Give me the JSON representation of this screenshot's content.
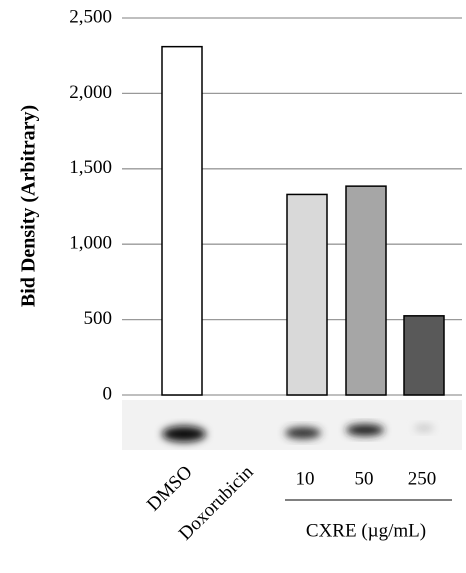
{
  "chart_data": {
    "type": "bar",
    "y_label": "Bid Density (Arbitrary)",
    "categories": [
      "DMSO",
      "Doxorubicin",
      "10",
      "50",
      "250"
    ],
    "values": [
      2310,
      0,
      1330,
      1385,
      525
    ],
    "colors": [
      "#ffffff",
      "#ffffff",
      "#d9d9d9",
      "#a6a6a6",
      "#595959"
    ],
    "group_label": "CXRE (µg/mL)",
    "ylim": [
      0,
      2500
    ],
    "yticks": [
      0,
      500,
      {
        "value": 1000,
        "label": "1,000"
      },
      {
        "value": 1500,
        "label": "1,500"
      },
      {
        "value": 2000,
        "label": "2,000"
      },
      {
        "value": 2500,
        "label": "2,500"
      }
    ],
    "grid": true
  }
}
